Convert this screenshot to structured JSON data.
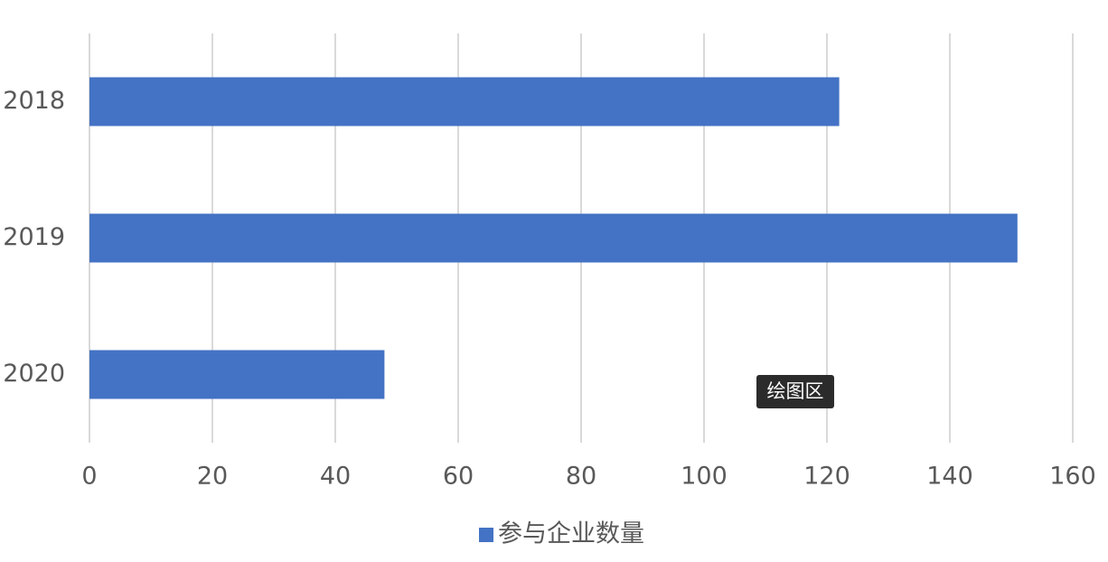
{
  "chart_data": {
    "type": "hbar",
    "categories": [
      "2018",
      "2019",
      "2020"
    ],
    "series": [
      {
        "name": "参与企业数量",
        "color": "#4472c4",
        "values": [
          122,
          151,
          48
        ]
      }
    ],
    "xlim": [
      0,
      160
    ],
    "xticks": [
      0,
      20,
      40,
      60,
      80,
      100,
      120,
      140,
      160
    ],
    "grid": true,
    "legend": "bottom",
    "tooltip": "绘图区"
  }
}
